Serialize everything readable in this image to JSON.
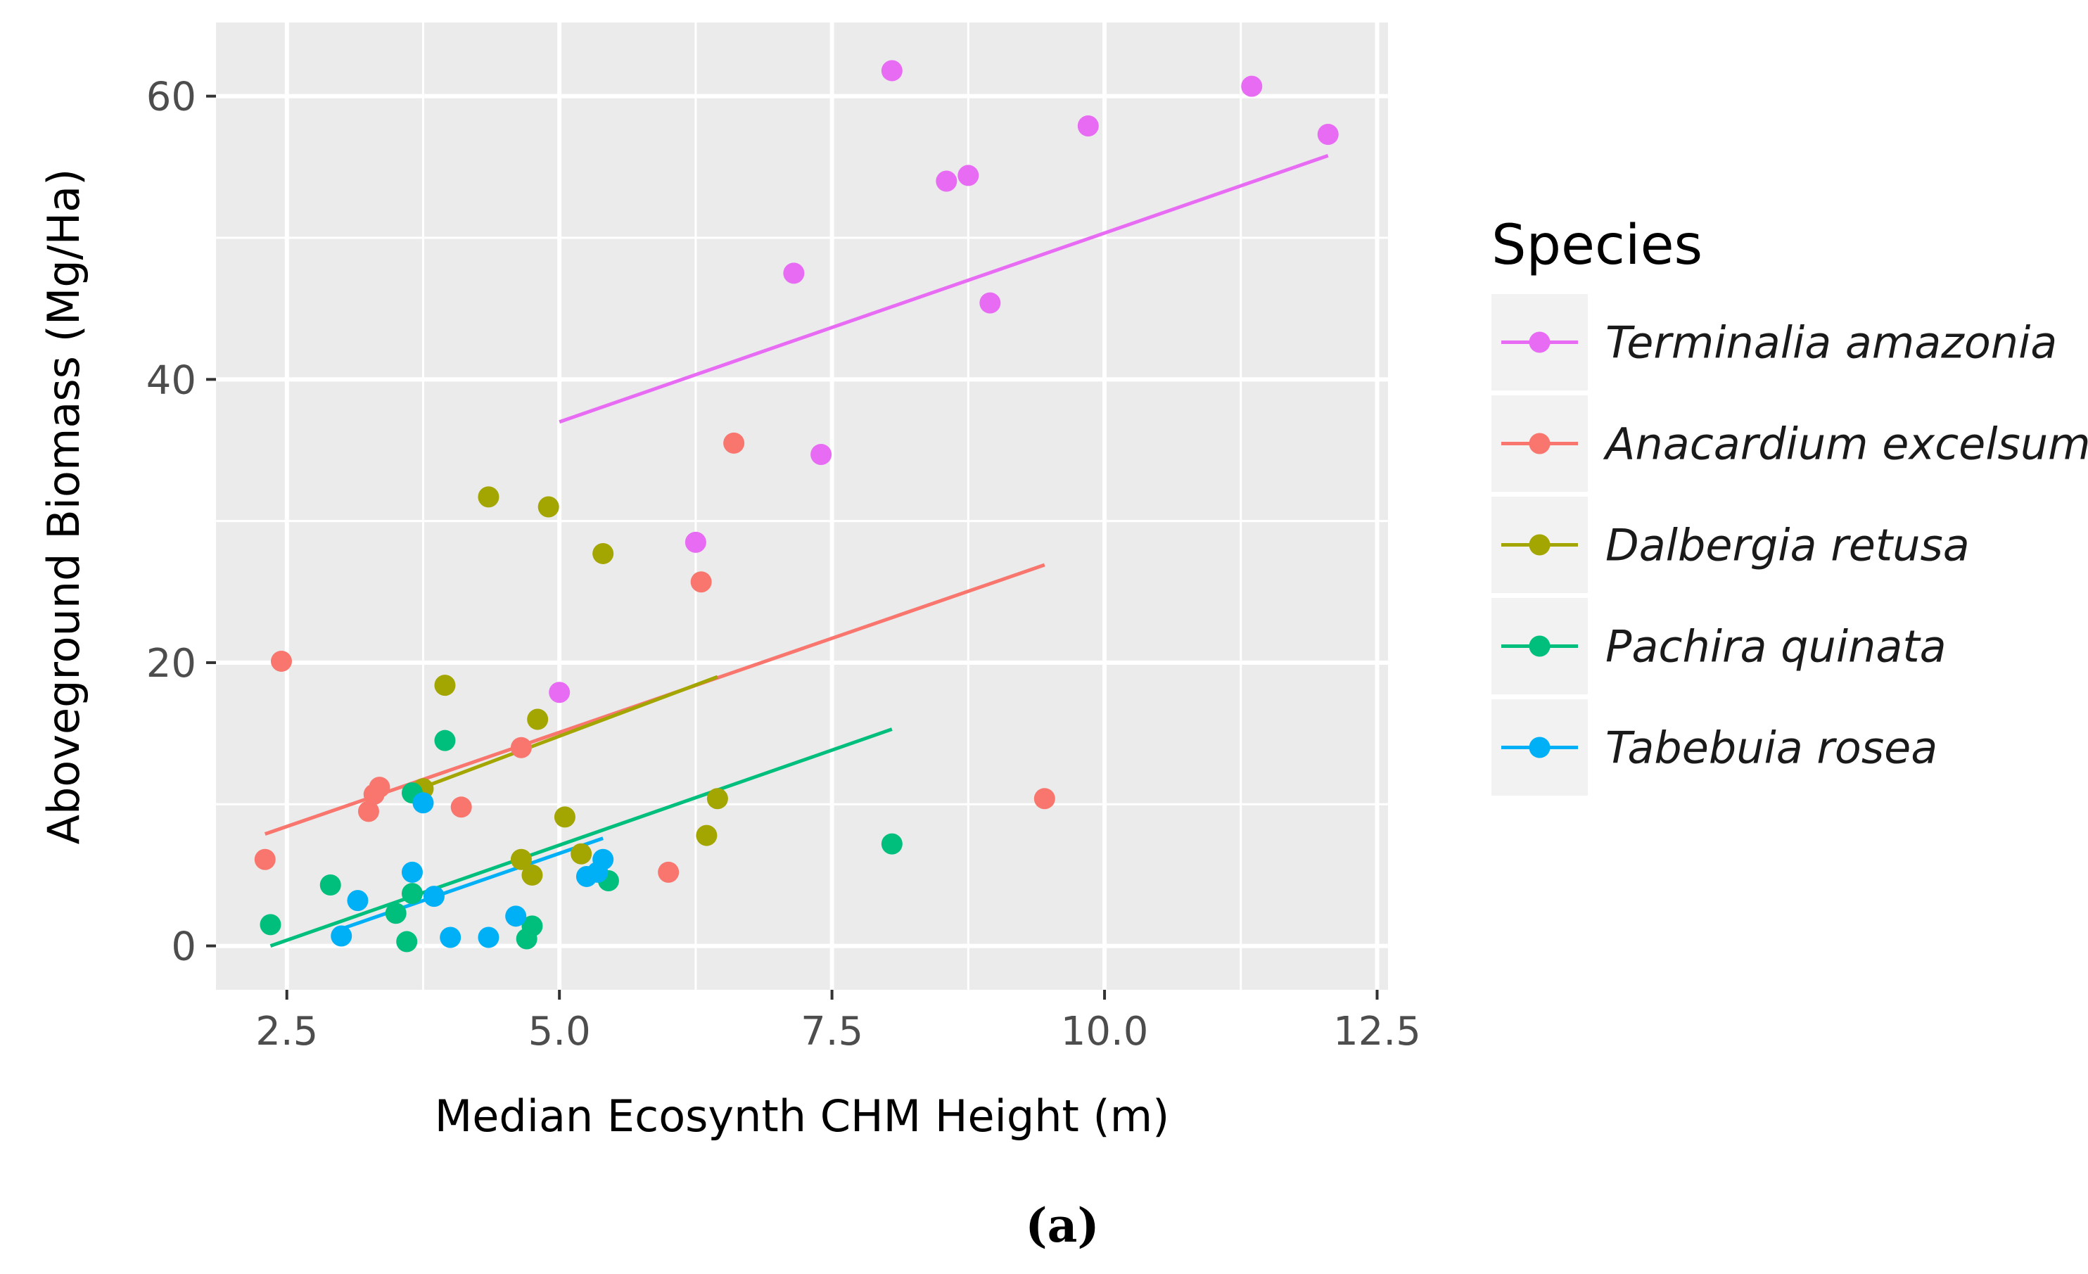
{
  "chart_data": {
    "type": "scatter",
    "xlabel": "Median Ecosynth CHM Height (m)",
    "ylabel": "Aboveground Biomass (Mg/Ha)",
    "xlim": [
      1.85,
      12.6
    ],
    "ylim": [
      -3.1,
      65.2
    ],
    "x_ticks": [
      2.5,
      5.0,
      7.5,
      10.0,
      12.5
    ],
    "x_tick_labels": [
      "2.5",
      "5.0",
      "7.5",
      "10.0",
      "12.5"
    ],
    "y_ticks": [
      0,
      20,
      40,
      60
    ],
    "y_tick_labels": [
      "0",
      "20",
      "40",
      "60"
    ],
    "grid": true,
    "legend_title": "Species",
    "legend_position": "right",
    "caption": "(a)",
    "series": [
      {
        "name": "Terminalia amazonia",
        "color": "#E76BF3",
        "points": [
          [
            8.05,
            61.8
          ],
          [
            11.35,
            60.7
          ],
          [
            12.05,
            57.3
          ],
          [
            9.85,
            57.9
          ],
          [
            8.55,
            54.0
          ],
          [
            8.75,
            54.4
          ],
          [
            7.15,
            47.5
          ],
          [
            8.95,
            45.4
          ],
          [
            7.4,
            34.7
          ],
          [
            6.25,
            28.5
          ],
          [
            5.0,
            17.9
          ]
        ],
        "fit": [
          [
            5.0,
            37.0
          ],
          [
            12.05,
            55.8
          ]
        ]
      },
      {
        "name": "Anacardium excelsum",
        "color": "#F8766D",
        "points": [
          [
            2.3,
            6.1
          ],
          [
            2.45,
            20.1
          ],
          [
            3.25,
            9.5
          ],
          [
            3.3,
            10.7
          ],
          [
            3.35,
            11.2
          ],
          [
            4.1,
            9.8
          ],
          [
            4.65,
            14.0
          ],
          [
            6.0,
            5.2
          ],
          [
            6.3,
            25.7
          ],
          [
            6.6,
            35.5
          ],
          [
            9.45,
            10.4
          ]
        ],
        "fit": [
          [
            2.3,
            7.9
          ],
          [
            9.45,
            26.9
          ]
        ]
      },
      {
        "name": "Dalbergia retusa",
        "color": "#A3A500",
        "points": [
          [
            3.75,
            11.1
          ],
          [
            3.95,
            18.4
          ],
          [
            4.35,
            31.7
          ],
          [
            4.65,
            6.1
          ],
          [
            4.75,
            5.0
          ],
          [
            4.8,
            16.0
          ],
          [
            4.9,
            31.0
          ],
          [
            5.05,
            9.1
          ],
          [
            5.2,
            6.5
          ],
          [
            5.4,
            27.7
          ],
          [
            6.35,
            7.8
          ],
          [
            6.45,
            10.4
          ]
        ],
        "fit": [
          [
            3.75,
            11.2
          ],
          [
            6.45,
            19.0
          ]
        ]
      },
      {
        "name": "Pachira quinata",
        "color": "#00BF7D",
        "points": [
          [
            2.35,
            1.5
          ],
          [
            2.9,
            4.3
          ],
          [
            3.5,
            2.3
          ],
          [
            3.6,
            0.3
          ],
          [
            3.65,
            3.7
          ],
          [
            3.65,
            10.8
          ],
          [
            3.95,
            14.5
          ],
          [
            4.7,
            0.5
          ],
          [
            4.75,
            1.4
          ],
          [
            5.45,
            4.6
          ],
          [
            8.05,
            7.2
          ]
        ],
        "fit": [
          [
            2.35,
            0.0
          ],
          [
            8.05,
            15.3
          ]
        ]
      },
      {
        "name": "Tabebuia rosea",
        "color": "#00B0F6",
        "points": [
          [
            3.0,
            0.7
          ],
          [
            3.15,
            3.2
          ],
          [
            3.65,
            5.2
          ],
          [
            3.75,
            10.1
          ],
          [
            3.85,
            3.5
          ],
          [
            4.0,
            0.6
          ],
          [
            4.35,
            0.6
          ],
          [
            4.6,
            2.1
          ],
          [
            5.25,
            4.9
          ],
          [
            5.35,
            5.2
          ],
          [
            5.4,
            6.1
          ]
        ],
        "fit": [
          [
            3.0,
            1.2
          ],
          [
            5.4,
            7.6
          ]
        ]
      }
    ]
  }
}
